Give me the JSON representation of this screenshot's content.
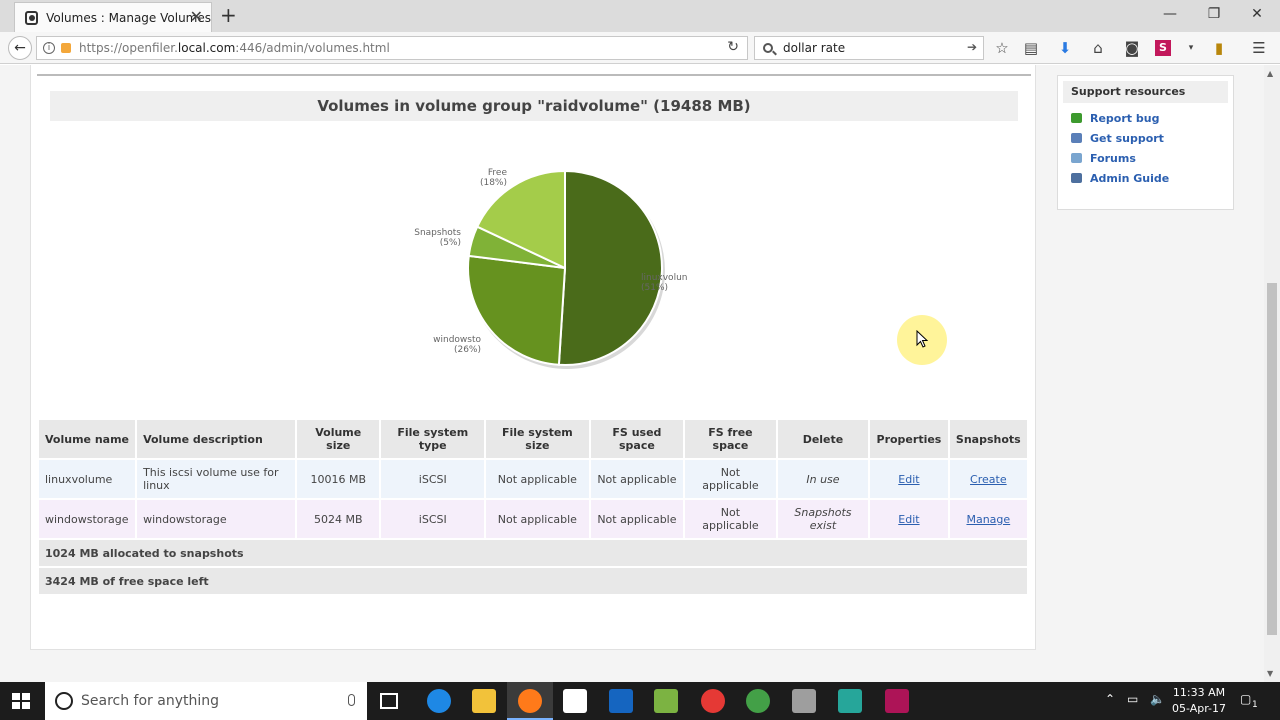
{
  "browser": {
    "tab_title": "Volumes : Manage Volumes",
    "url_prefix": "https://openfiler.",
    "url_domain": "local.com",
    "url_suffix": ":446/admin/volumes.html",
    "search_value": "dollar rate"
  },
  "main": {
    "title": "Volumes in volume group \"raidvolume\" (19488 MB)"
  },
  "chart_data": {
    "type": "pie",
    "title": "",
    "slices": [
      {
        "label": "linuxvolun",
        "percent_label": "(51%)",
        "value": 51,
        "color": "#4a6b1a"
      },
      {
        "label": "windowsto",
        "percent_label": "(26%)",
        "value": 26,
        "color": "#66921f"
      },
      {
        "label": "Snapshots",
        "percent_label": "(5%)",
        "value": 5,
        "color": "#80b237"
      },
      {
        "label": "Free",
        "percent_label": "(18%)",
        "value": 18,
        "color": "#a4cc4a"
      }
    ]
  },
  "table": {
    "headers": [
      "Volume name",
      "Volume description",
      "Volume size",
      "File system type",
      "File system size",
      "FS used space",
      "FS free space",
      "Delete",
      "Properties",
      "Snapshots"
    ],
    "rows": [
      {
        "name": "linuxvolume",
        "description": "This iscsi volume use for linux",
        "size": "10016 MB",
        "fs_type": "iSCSI",
        "fs_size": "Not applicable",
        "fs_used": "Not applicable",
        "fs_free": "Not applicable",
        "delete": "In use",
        "properties": "Edit",
        "snapshots": "Create"
      },
      {
        "name": "windowstorage",
        "description": "windowstorage",
        "size": "5024 MB",
        "fs_type": "iSCSI",
        "fs_size": "Not applicable",
        "fs_used": "Not applicable",
        "fs_free": "Not applicable",
        "delete": "Snapshots exist",
        "properties": "Edit",
        "snapshots": "Manage"
      }
    ],
    "summary": [
      "1024 MB allocated to snapshots",
      "3424 MB of free space left"
    ]
  },
  "sidebar": {
    "title": "Support resources",
    "items": [
      {
        "label": "Report bug",
        "color": "#3d9a2e"
      },
      {
        "label": "Get support",
        "color": "#5a7fb8"
      },
      {
        "label": "Forums",
        "color": "#7aa5cf"
      },
      {
        "label": "Admin Guide",
        "color": "#4d6f9e"
      }
    ]
  },
  "taskbar": {
    "search_placeholder": "Search for anything",
    "time": "11:33 AM",
    "date": "05-Apr-17",
    "notification_count": "1"
  }
}
